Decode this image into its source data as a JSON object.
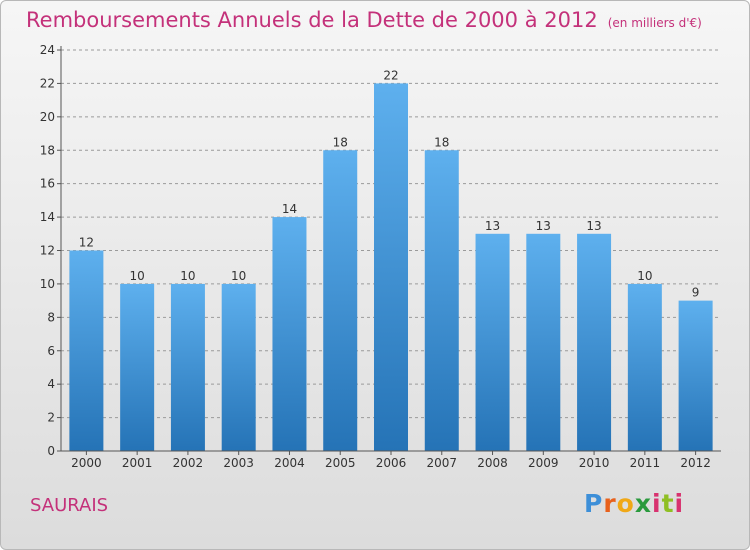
{
  "title": "Remboursements Annuels de la Dette de 2000 à 2012",
  "title_unit": "(en milliers d'€)",
  "commune": "SAURAIS",
  "logo": "Proxiti",
  "colors": {
    "title": "#c4317a",
    "bar_top": "#5eb0ee",
    "bar_bottom": "#2573b6",
    "grid": "#9a9a9a"
  },
  "chart_data": {
    "type": "bar",
    "title": "Remboursements Annuels de la Dette de 2000 à 2012",
    "subtitle": "(en milliers d'€)",
    "xlabel": "",
    "ylabel": "",
    "categories": [
      "2000",
      "2001",
      "2002",
      "2003",
      "2004",
      "2005",
      "2006",
      "2007",
      "2008",
      "2009",
      "2010",
      "2011",
      "2012"
    ],
    "values": [
      12,
      10,
      10,
      10,
      14,
      18,
      22,
      18,
      13,
      13,
      13,
      10,
      9
    ],
    "ylim": [
      0,
      24
    ],
    "yticks": [
      0,
      2,
      4,
      6,
      8,
      10,
      12,
      14,
      16,
      18,
      20,
      22,
      24
    ],
    "grid": true,
    "grid_style": "dashed-horizontal",
    "data_labels": true
  }
}
